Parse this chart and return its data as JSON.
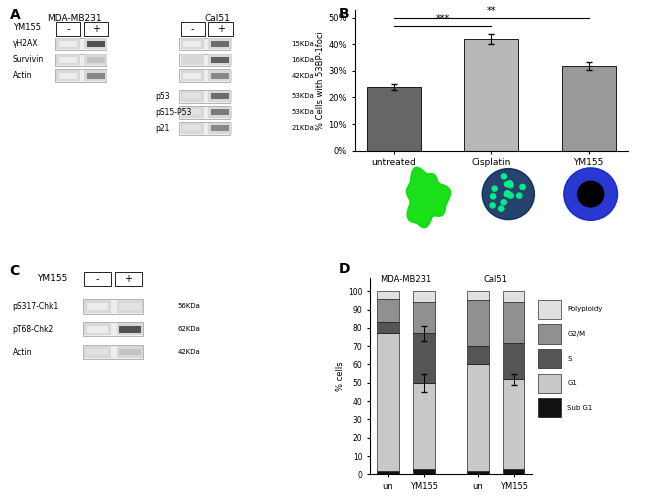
{
  "panel_B": {
    "categories": [
      "untreated",
      "Cisplatin",
      "YM155"
    ],
    "values": [
      24,
      42,
      32
    ],
    "errors": [
      1.0,
      2.0,
      1.5
    ],
    "colors": [
      "#666666",
      "#b8b8b8",
      "#999999"
    ],
    "ylabel": "% Cells with 53BP-1foci",
    "yticks": [
      0,
      10,
      20,
      30,
      40,
      50
    ],
    "yticklabels": [
      "0%",
      "10%",
      "20%",
      "30%",
      "40%",
      "50%"
    ],
    "ylim": [
      0,
      53
    ]
  },
  "panel_D": {
    "xlabels": [
      "un",
      "YM155",
      "un",
      "YM155"
    ],
    "group_title_left": "MDA-MB231",
    "group_title_right": "Cal51",
    "x_positions": [
      0,
      1,
      2.5,
      3.5
    ],
    "sub_g1": [
      2,
      3,
      2,
      3
    ],
    "g1": [
      75,
      47,
      58,
      49
    ],
    "s": [
      6,
      27,
      10,
      20
    ],
    "g2m": [
      13,
      17,
      25,
      22
    ],
    "polyploidy": [
      4,
      6,
      5,
      6
    ],
    "colors": {
      "Sub G1": "#111111",
      "G1": "#c8c8c8",
      "S": "#555555",
      "G2/M": "#909090",
      "Polyploidy": "#e0e0e0"
    },
    "ylabel": "% cells",
    "yticks": [
      0,
      10,
      20,
      30,
      40,
      50,
      60,
      70,
      80,
      90,
      100
    ],
    "ylim": [
      0,
      107
    ]
  },
  "panel_A": {
    "title_left": "MDA-MB231",
    "title_right": "Cal51",
    "ym155_label": "YM155",
    "left_rows": [
      "γH2AX",
      "Survivin",
      "Actin"
    ],
    "right_rows": [
      "",
      "",
      "",
      "p53",
      "pS15-P53",
      "p21"
    ],
    "right_kda": [
      "15KDa",
      "16KDa",
      "42KDa",
      "53KDa",
      "53KDa",
      "21KDa"
    ]
  },
  "panel_C": {
    "ym155_label": "YM155",
    "rows": [
      "pS317-Chk1",
      "pT68-Chk2",
      "Actin"
    ],
    "kda": [
      "56KDa",
      "62KDa",
      "42KDa"
    ]
  }
}
